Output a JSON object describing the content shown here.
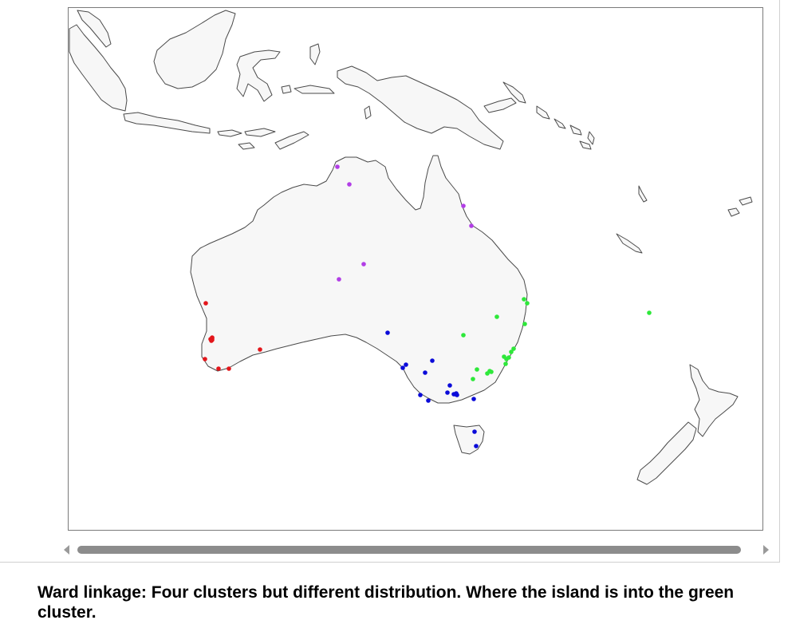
{
  "caption": "Ward linkage: Four clusters but different distribution. Where the island is into the green cluster.",
  "colors": {
    "land_fill": "#f7f7f7",
    "land_stroke": "#4a4a4a",
    "frame": "#7a7a7a",
    "scrollbar_thumb": "#8c8c8c",
    "red": "#e3161b",
    "blue": "#0b0bd9",
    "green": "#2ee83a",
    "purple": "#b23ee6"
  },
  "map": {
    "region": "Australia and surrounding region",
    "clusters": [
      {
        "name": "red",
        "color": "#e3161b",
        "point_count": 10
      },
      {
        "name": "blue",
        "color": "#0b0bd9",
        "point_count": 20
      },
      {
        "name": "green",
        "color": "#2ee83a",
        "point_count": 21
      },
      {
        "name": "purple",
        "color": "#b23ee6",
        "point_count": 6
      }
    ]
  },
  "scrollbar": {
    "left_arrow_icon": "triangle-left-icon",
    "right_arrow_icon": "triangle-right-icon"
  }
}
